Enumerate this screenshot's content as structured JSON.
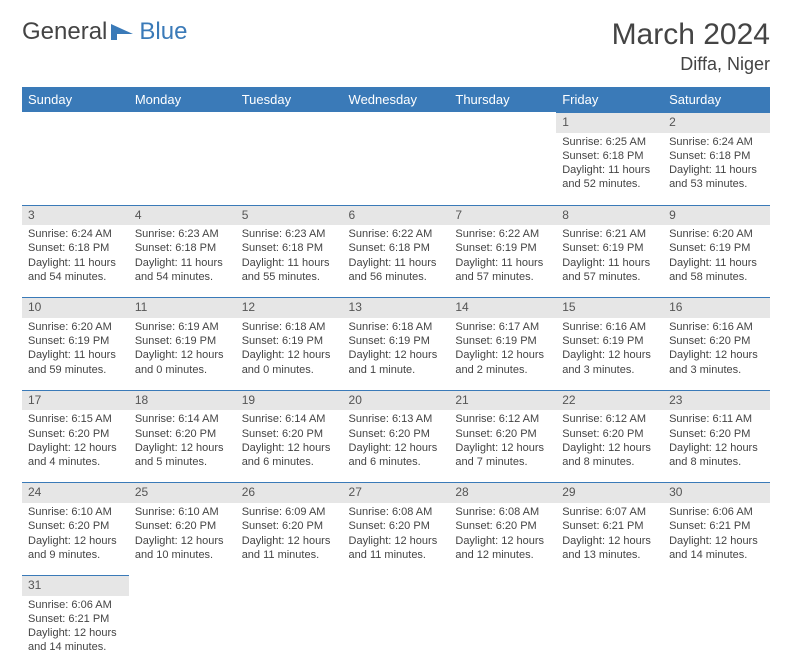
{
  "logo": {
    "text1": "General",
    "text2": "Blue"
  },
  "title": "March 2024",
  "location": "Diffa, Niger",
  "colors": {
    "header_bg": "#3a7ab8",
    "header_text": "#ffffff",
    "daynum_bg": "#e6e6e6",
    "daynum_border": "#3a7ab8",
    "body_text": "#444444",
    "page_bg": "#ffffff"
  },
  "weekdays": [
    "Sunday",
    "Monday",
    "Tuesday",
    "Wednesday",
    "Thursday",
    "Friday",
    "Saturday"
  ],
  "weeks": [
    [
      null,
      null,
      null,
      null,
      null,
      {
        "n": "1",
        "sr": "6:25 AM",
        "ss": "6:18 PM",
        "dl": "11 hours and 52 minutes."
      },
      {
        "n": "2",
        "sr": "6:24 AM",
        "ss": "6:18 PM",
        "dl": "11 hours and 53 minutes."
      }
    ],
    [
      {
        "n": "3",
        "sr": "6:24 AM",
        "ss": "6:18 PM",
        "dl": "11 hours and 54 minutes."
      },
      {
        "n": "4",
        "sr": "6:23 AM",
        "ss": "6:18 PM",
        "dl": "11 hours and 54 minutes."
      },
      {
        "n": "5",
        "sr": "6:23 AM",
        "ss": "6:18 PM",
        "dl": "11 hours and 55 minutes."
      },
      {
        "n": "6",
        "sr": "6:22 AM",
        "ss": "6:18 PM",
        "dl": "11 hours and 56 minutes."
      },
      {
        "n": "7",
        "sr": "6:22 AM",
        "ss": "6:19 PM",
        "dl": "11 hours and 57 minutes."
      },
      {
        "n": "8",
        "sr": "6:21 AM",
        "ss": "6:19 PM",
        "dl": "11 hours and 57 minutes."
      },
      {
        "n": "9",
        "sr": "6:20 AM",
        "ss": "6:19 PM",
        "dl": "11 hours and 58 minutes."
      }
    ],
    [
      {
        "n": "10",
        "sr": "6:20 AM",
        "ss": "6:19 PM",
        "dl": "11 hours and 59 minutes."
      },
      {
        "n": "11",
        "sr": "6:19 AM",
        "ss": "6:19 PM",
        "dl": "12 hours and 0 minutes."
      },
      {
        "n": "12",
        "sr": "6:18 AM",
        "ss": "6:19 PM",
        "dl": "12 hours and 0 minutes."
      },
      {
        "n": "13",
        "sr": "6:18 AM",
        "ss": "6:19 PM",
        "dl": "12 hours and 1 minute."
      },
      {
        "n": "14",
        "sr": "6:17 AM",
        "ss": "6:19 PM",
        "dl": "12 hours and 2 minutes."
      },
      {
        "n": "15",
        "sr": "6:16 AM",
        "ss": "6:19 PM",
        "dl": "12 hours and 3 minutes."
      },
      {
        "n": "16",
        "sr": "6:16 AM",
        "ss": "6:20 PM",
        "dl": "12 hours and 3 minutes."
      }
    ],
    [
      {
        "n": "17",
        "sr": "6:15 AM",
        "ss": "6:20 PM",
        "dl": "12 hours and 4 minutes."
      },
      {
        "n": "18",
        "sr": "6:14 AM",
        "ss": "6:20 PM",
        "dl": "12 hours and 5 minutes."
      },
      {
        "n": "19",
        "sr": "6:14 AM",
        "ss": "6:20 PM",
        "dl": "12 hours and 6 minutes."
      },
      {
        "n": "20",
        "sr": "6:13 AM",
        "ss": "6:20 PM",
        "dl": "12 hours and 6 minutes."
      },
      {
        "n": "21",
        "sr": "6:12 AM",
        "ss": "6:20 PM",
        "dl": "12 hours and 7 minutes."
      },
      {
        "n": "22",
        "sr": "6:12 AM",
        "ss": "6:20 PM",
        "dl": "12 hours and 8 minutes."
      },
      {
        "n": "23",
        "sr": "6:11 AM",
        "ss": "6:20 PM",
        "dl": "12 hours and 8 minutes."
      }
    ],
    [
      {
        "n": "24",
        "sr": "6:10 AM",
        "ss": "6:20 PM",
        "dl": "12 hours and 9 minutes."
      },
      {
        "n": "25",
        "sr": "6:10 AM",
        "ss": "6:20 PM",
        "dl": "12 hours and 10 minutes."
      },
      {
        "n": "26",
        "sr": "6:09 AM",
        "ss": "6:20 PM",
        "dl": "12 hours and 11 minutes."
      },
      {
        "n": "27",
        "sr": "6:08 AM",
        "ss": "6:20 PM",
        "dl": "12 hours and 11 minutes."
      },
      {
        "n": "28",
        "sr": "6:08 AM",
        "ss": "6:20 PM",
        "dl": "12 hours and 12 minutes."
      },
      {
        "n": "29",
        "sr": "6:07 AM",
        "ss": "6:21 PM",
        "dl": "12 hours and 13 minutes."
      },
      {
        "n": "30",
        "sr": "6:06 AM",
        "ss": "6:21 PM",
        "dl": "12 hours and 14 minutes."
      }
    ],
    [
      {
        "n": "31",
        "sr": "6:06 AM",
        "ss": "6:21 PM",
        "dl": "12 hours and 14 minutes."
      },
      null,
      null,
      null,
      null,
      null,
      null
    ]
  ],
  "labels": {
    "sunrise": "Sunrise: ",
    "sunset": "Sunset: ",
    "daylight": "Daylight: "
  }
}
